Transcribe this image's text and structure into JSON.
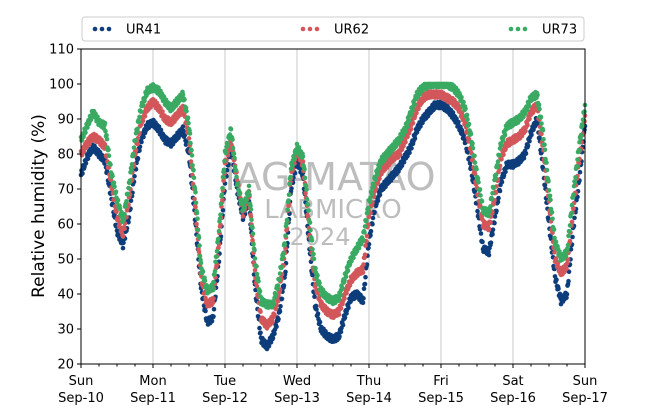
{
  "chart_data": {
    "type": "scatter",
    "title": "",
    "xlabel": "",
    "ylabel": "Relative humidity (%)",
    "ylim": [
      20,
      110
    ],
    "yticks": [
      "20",
      "30",
      "40",
      "50",
      "60",
      "70",
      "80",
      "90",
      "100",
      "110"
    ],
    "xlim": [
      "2023-09-10T00:00",
      "2023-09-17T00:00"
    ],
    "xticks": [
      {
        "day": "Sun",
        "date": "Sep-10"
      },
      {
        "day": "Mon",
        "date": "Sep-11"
      },
      {
        "day": "Tue",
        "date": "Sep-12"
      },
      {
        "day": "Wed",
        "date": "Sep-13"
      },
      {
        "day": "Thu",
        "date": "Sep-14"
      },
      {
        "day": "Fri",
        "date": "Sep-15"
      },
      {
        "day": "Sat",
        "date": "Sep-16"
      },
      {
        "day": "Sun",
        "date": "Sep-17"
      }
    ],
    "grid": "vertical at day boundaries",
    "legend_position": "top",
    "watermark": [
      "IAG-MATAO",
      "LABMICRO",
      "2024"
    ],
    "series_keys": [
      "time",
      "value"
    ],
    "series": [
      {
        "name": "UR41",
        "color": "#0d3d7a",
        "points": [
          [
            "09-10 00:00",
            74
          ],
          [
            "09-10 02:00",
            79
          ],
          [
            "09-10 04:00",
            82
          ],
          [
            "09-10 06:00",
            80
          ],
          [
            "09-10 08:00",
            78
          ],
          [
            "09-10 10:00",
            68
          ],
          [
            "09-10 12:00",
            58
          ],
          [
            "09-10 14:00",
            54
          ],
          [
            "09-10 16:00",
            62
          ],
          [
            "09-10 18:00",
            75
          ],
          [
            "09-10 20:00",
            84
          ],
          [
            "09-10 22:00",
            88
          ],
          [
            "09-11 00:00",
            89
          ],
          [
            "09-11 02:00",
            87
          ],
          [
            "09-11 04:00",
            84
          ],
          [
            "09-11 06:00",
            83
          ],
          [
            "09-11 08:00",
            85
          ],
          [
            "09-11 10:00",
            87
          ],
          [
            "09-11 12:00",
            80
          ],
          [
            "09-11 14:00",
            62
          ],
          [
            "09-11 16:00",
            42
          ],
          [
            "09-11 18:00",
            32
          ],
          [
            "09-11 20:00",
            33
          ],
          [
            "09-11 22:00",
            50
          ],
          [
            "09-12 00:00",
            72
          ],
          [
            "09-12 02:00",
            82
          ],
          [
            "09-12 04:00",
            70
          ],
          [
            "09-12 06:00",
            62
          ],
          [
            "09-12 08:00",
            67
          ],
          [
            "09-12 10:00",
            42
          ],
          [
            "09-12 12:00",
            27
          ],
          [
            "09-12 14:00",
            25
          ],
          [
            "09-12 16:00",
            28
          ],
          [
            "09-12 18:00",
            34
          ],
          [
            "09-12 20:00",
            45
          ],
          [
            "09-12 22:00",
            70
          ],
          [
            "09-13 00:00",
            78
          ],
          [
            "09-13 02:00",
            74
          ],
          [
            "09-13 04:00",
            55
          ],
          [
            "09-13 06:00",
            37
          ],
          [
            "09-13 08:00",
            30
          ],
          [
            "09-13 10:00",
            28
          ],
          [
            "09-13 12:00",
            27
          ],
          [
            "09-13 14:00",
            28
          ],
          [
            "09-13 16:00",
            34
          ],
          [
            "09-13 18:00",
            39
          ],
          [
            "09-13 20:00",
            40
          ],
          [
            "09-13 22:00",
            38
          ],
          [
            "09-14 00:00",
            55
          ],
          [
            "09-14 02:00",
            65
          ],
          [
            "09-14 04:00",
            70
          ],
          [
            "09-14 06:00",
            72
          ],
          [
            "09-14 08:00",
            74
          ],
          [
            "09-14 10:00",
            76
          ],
          [
            "09-14 12:00",
            79
          ],
          [
            "09-14 14:00",
            82
          ],
          [
            "09-14 16:00",
            87
          ],
          [
            "09-14 18:00",
            90
          ],
          [
            "09-14 20:00",
            92
          ],
          [
            "09-14 22:00",
            94
          ],
          [
            "09-15 00:00",
            94
          ],
          [
            "09-15 02:00",
            93
          ],
          [
            "09-15 04:00",
            91
          ],
          [
            "09-15 06:00",
            88
          ],
          [
            "09-15 08:00",
            84
          ],
          [
            "09-15 10:00",
            76
          ],
          [
            "09-15 12:00",
            65
          ],
          [
            "09-15 14:00",
            53
          ],
          [
            "09-15 16:00",
            52
          ],
          [
            "09-15 18:00",
            62
          ],
          [
            "09-15 20:00",
            72
          ],
          [
            "09-15 22:00",
            77
          ],
          [
            "09-16 00:00",
            77
          ],
          [
            "09-16 02:00",
            78
          ],
          [
            "09-16 04:00",
            80
          ],
          [
            "09-16 06:00",
            86
          ],
          [
            "09-16 08:00",
            90
          ],
          [
            "09-16 10:00",
            76
          ],
          [
            "09-16 12:00",
            60
          ],
          [
            "09-16 14:00",
            45
          ],
          [
            "09-16 16:00",
            38
          ],
          [
            "09-16 18:00",
            40
          ],
          [
            "09-16 20:00",
            58
          ],
          [
            "09-16 22:00",
            72
          ],
          [
            "09-17 00:00",
            88
          ]
        ]
      },
      {
        "name": "UR62",
        "color": "#d2575a",
        "points": [
          [
            "09-10 00:00",
            80
          ],
          [
            "09-10 02:00",
            83
          ],
          [
            "09-10 04:00",
            85
          ],
          [
            "09-10 06:00",
            84
          ],
          [
            "09-10 08:00",
            82
          ],
          [
            "09-10 10:00",
            72
          ],
          [
            "09-10 12:00",
            62
          ],
          [
            "09-10 14:00",
            57
          ],
          [
            "09-10 16:00",
            67
          ],
          [
            "09-10 18:00",
            80
          ],
          [
            "09-10 20:00",
            89
          ],
          [
            "09-10 22:00",
            93
          ],
          [
            "09-11 00:00",
            95
          ],
          [
            "09-11 02:00",
            93
          ],
          [
            "09-11 04:00",
            90
          ],
          [
            "09-11 06:00",
            89
          ],
          [
            "09-11 08:00",
            91
          ],
          [
            "09-11 10:00",
            93
          ],
          [
            "09-11 12:00",
            85
          ],
          [
            "09-11 14:00",
            66
          ],
          [
            "09-11 16:00",
            45
          ],
          [
            "09-11 18:00",
            37
          ],
          [
            "09-11 20:00",
            38
          ],
          [
            "09-11 22:00",
            55
          ],
          [
            "09-12 00:00",
            77
          ],
          [
            "09-12 02:00",
            84
          ],
          [
            "09-12 04:00",
            73
          ],
          [
            "09-12 06:00",
            63
          ],
          [
            "09-12 08:00",
            69
          ],
          [
            "09-12 10:00",
            46
          ],
          [
            "09-12 12:00",
            33
          ],
          [
            "09-12 14:00",
            31
          ],
          [
            "09-12 16:00",
            33
          ],
          [
            "09-12 18:00",
            40
          ],
          [
            "09-12 20:00",
            52
          ],
          [
            "09-12 22:00",
            74
          ],
          [
            "09-13 00:00",
            81
          ],
          [
            "09-13 02:00",
            77
          ],
          [
            "09-13 04:00",
            59
          ],
          [
            "09-13 06:00",
            43
          ],
          [
            "09-13 08:00",
            37
          ],
          [
            "09-13 10:00",
            35
          ],
          [
            "09-13 12:00",
            34
          ],
          [
            "09-13 14:00",
            35
          ],
          [
            "09-13 16:00",
            40
          ],
          [
            "09-13 18:00",
            44
          ],
          [
            "09-13 20:00",
            46
          ],
          [
            "09-13 22:00",
            47
          ],
          [
            "09-14 00:00",
            62
          ],
          [
            "09-14 02:00",
            70
          ],
          [
            "09-14 04:00",
            75
          ],
          [
            "09-14 06:00",
            77
          ],
          [
            "09-14 08:00",
            79
          ],
          [
            "09-14 10:00",
            80
          ],
          [
            "09-14 12:00",
            84
          ],
          [
            "09-14 14:00",
            88
          ],
          [
            "09-14 16:00",
            93
          ],
          [
            "09-14 18:00",
            96
          ],
          [
            "09-14 20:00",
            97
          ],
          [
            "09-14 22:00",
            97
          ],
          [
            "09-15 00:00",
            97
          ],
          [
            "09-15 02:00",
            96
          ],
          [
            "09-15 04:00",
            95
          ],
          [
            "09-15 06:00",
            93
          ],
          [
            "09-15 08:00",
            89
          ],
          [
            "09-15 10:00",
            81
          ],
          [
            "09-15 12:00",
            70
          ],
          [
            "09-15 14:00",
            60
          ],
          [
            "09-15 16:00",
            59
          ],
          [
            "09-15 18:00",
            68
          ],
          [
            "09-15 20:00",
            79
          ],
          [
            "09-15 22:00",
            83
          ],
          [
            "09-16 00:00",
            84
          ],
          [
            "09-16 02:00",
            85
          ],
          [
            "09-16 04:00",
            87
          ],
          [
            "09-16 06:00",
            92
          ],
          [
            "09-16 08:00",
            94
          ],
          [
            "09-16 10:00",
            82
          ],
          [
            "09-16 12:00",
            66
          ],
          [
            "09-16 14:00",
            50
          ],
          [
            "09-16 16:00",
            46
          ],
          [
            "09-16 18:00",
            48
          ],
          [
            "09-16 20:00",
            64
          ],
          [
            "09-16 22:00",
            78
          ],
          [
            "09-17 00:00",
            91
          ]
        ]
      },
      {
        "name": "UR73",
        "color": "#3aaa63",
        "points": [
          [
            "09-10 00:00",
            84
          ],
          [
            "09-10 02:00",
            88
          ],
          [
            "09-10 04:00",
            92
          ],
          [
            "09-10 06:00",
            89
          ],
          [
            "09-10 08:00",
            88
          ],
          [
            "09-10 10:00",
            75
          ],
          [
            "09-10 12:00",
            67
          ],
          [
            "09-10 14:00",
            61
          ],
          [
            "09-10 16:00",
            71
          ],
          [
            "09-10 18:00",
            84
          ],
          [
            "09-10 20:00",
            93
          ],
          [
            "09-10 22:00",
            98
          ],
          [
            "09-11 00:00",
            99
          ],
          [
            "09-11 02:00",
            98
          ],
          [
            "09-11 04:00",
            95
          ],
          [
            "09-11 06:00",
            93
          ],
          [
            "09-11 08:00",
            95
          ],
          [
            "09-11 10:00",
            97
          ],
          [
            "09-11 12:00",
            88
          ],
          [
            "09-11 14:00",
            70
          ],
          [
            "09-11 16:00",
            48
          ],
          [
            "09-11 18:00",
            41
          ],
          [
            "09-11 20:00",
            42
          ],
          [
            "09-11 22:00",
            58
          ],
          [
            "09-12 00:00",
            80
          ],
          [
            "09-12 02:00",
            87
          ],
          [
            "09-12 04:00",
            72
          ],
          [
            "09-12 06:00",
            64
          ],
          [
            "09-12 08:00",
            70
          ],
          [
            "09-12 10:00",
            50
          ],
          [
            "09-12 12:00",
            38
          ],
          [
            "09-12 14:00",
            37
          ],
          [
            "09-12 16:00",
            37
          ],
          [
            "09-12 18:00",
            44
          ],
          [
            "09-12 20:00",
            55
          ],
          [
            "09-12 22:00",
            76
          ],
          [
            "09-13 00:00",
            82
          ],
          [
            "09-13 02:00",
            79
          ],
          [
            "09-13 04:00",
            62
          ],
          [
            "09-13 06:00",
            47
          ],
          [
            "09-13 08:00",
            41
          ],
          [
            "09-13 10:00",
            39
          ],
          [
            "09-13 12:00",
            38
          ],
          [
            "09-13 14:00",
            39
          ],
          [
            "09-13 16:00",
            45
          ],
          [
            "09-13 18:00",
            50
          ],
          [
            "09-13 20:00",
            53
          ],
          [
            "09-13 22:00",
            56
          ],
          [
            "09-14 00:00",
            66
          ],
          [
            "09-14 02:00",
            73
          ],
          [
            "09-14 04:00",
            78
          ],
          [
            "09-14 06:00",
            80
          ],
          [
            "09-14 08:00",
            82
          ],
          [
            "09-14 10:00",
            84
          ],
          [
            "09-14 12:00",
            87
          ],
          [
            "09-14 14:00",
            92
          ],
          [
            "09-14 16:00",
            97
          ],
          [
            "09-14 18:00",
            99
          ],
          [
            "09-14 20:00",
            100
          ],
          [
            "09-14 22:00",
            100
          ],
          [
            "09-15 00:00",
            100
          ],
          [
            "09-15 02:00",
            100
          ],
          [
            "09-15 04:00",
            99
          ],
          [
            "09-15 06:00",
            97
          ],
          [
            "09-15 08:00",
            93
          ],
          [
            "09-15 10:00",
            85
          ],
          [
            "09-15 12:00",
            74
          ],
          [
            "09-15 14:00",
            64
          ],
          [
            "09-15 16:00",
            63
          ],
          [
            "09-15 18:00",
            73
          ],
          [
            "09-15 20:00",
            83
          ],
          [
            "09-15 22:00",
            88
          ],
          [
            "09-16 00:00",
            89
          ],
          [
            "09-16 02:00",
            90
          ],
          [
            "09-16 04:00",
            92
          ],
          [
            "09-16 06:00",
            96
          ],
          [
            "09-16 08:00",
            97
          ],
          [
            "09-16 10:00",
            86
          ],
          [
            "09-16 12:00",
            70
          ],
          [
            "09-16 14:00",
            55
          ],
          [
            "09-16 16:00",
            50
          ],
          [
            "09-16 18:00",
            52
          ],
          [
            "09-16 20:00",
            68
          ],
          [
            "09-16 22:00",
            82
          ],
          [
            "09-17 00:00",
            94
          ]
        ]
      }
    ]
  }
}
